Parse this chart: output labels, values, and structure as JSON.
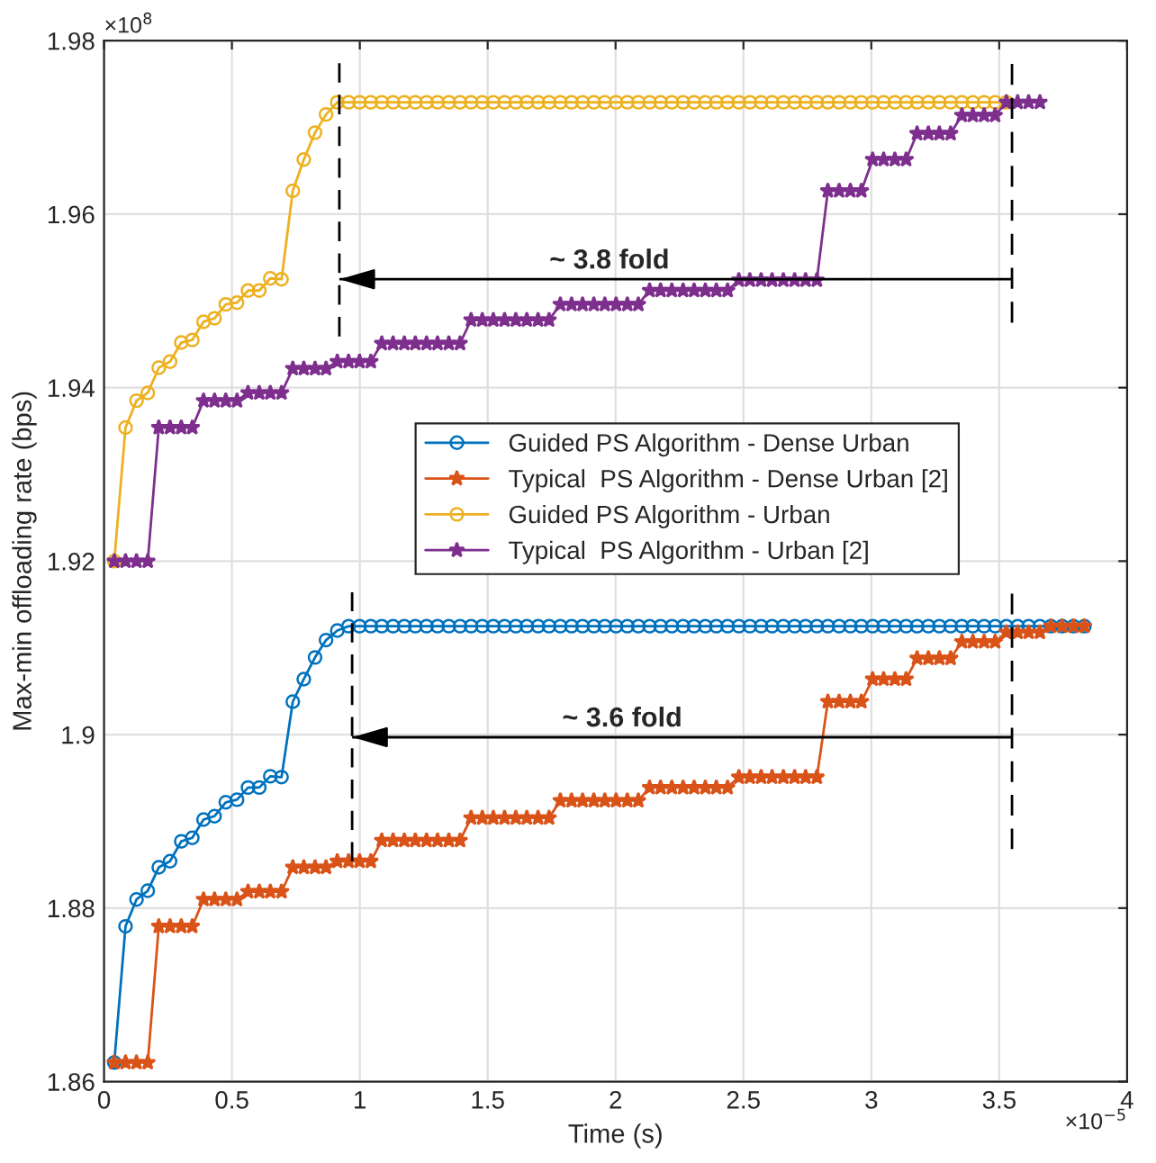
{
  "chart_data": {
    "type": "line",
    "xlabel": "Time (s)",
    "ylabel": "Max-min offloading rate (bps)",
    "x": [
      0.04,
      0.084,
      0.127,
      0.171,
      0.214,
      0.258,
      0.302,
      0.345,
      0.389,
      0.432,
      0.476,
      0.52,
      0.563,
      0.607,
      0.65,
      0.694,
      0.738,
      0.781,
      0.825,
      0.868,
      0.912,
      0.956,
      0.999,
      1.043,
      1.086,
      1.13,
      1.174,
      1.217,
      1.261,
      1.304,
      1.348,
      1.392,
      1.435,
      1.479,
      1.522,
      1.566,
      1.61,
      1.653,
      1.697,
      1.74,
      1.784,
      1.828,
      1.871,
      1.915,
      1.958,
      2.002,
      2.046,
      2.089,
      2.133,
      2.176,
      2.22,
      2.264,
      2.307,
      2.351,
      2.394,
      2.438,
      2.482,
      2.525,
      2.569,
      2.612,
      2.656,
      2.7,
      2.743,
      2.787,
      2.83,
      2.874,
      2.918,
      2.961,
      3.005,
      3.048,
      3.092,
      3.136,
      3.179,
      3.223,
      3.266,
      3.31,
      3.354,
      3.397,
      3.441,
      3.484,
      3.528,
      3.572,
      3.615,
      3.659,
      3.702,
      3.746,
      3.79,
      3.833
    ],
    "series": [
      {
        "name": "Guided PS Algorithm - Dense Urban",
        "color": "#0072bd",
        "marker": "circle",
        "values": [
          1.8622,
          1.8779,
          1.881,
          1.882,
          1.8847,
          1.8854,
          1.8877,
          1.8881,
          1.8902,
          1.8906,
          1.8922,
          1.8925,
          1.8939,
          1.8939,
          1.8952,
          1.8951,
          1.9038,
          1.9064,
          1.9089,
          1.9109,
          1.912,
          1.9125,
          1.9125,
          1.9125,
          1.9125,
          1.9125,
          1.9125,
          1.9125,
          1.9125,
          1.9125,
          1.9125,
          1.9125,
          1.9125,
          1.9125,
          1.9125,
          1.9125,
          1.9125,
          1.9125,
          1.9125,
          1.9125,
          1.9125,
          1.9125,
          1.9125,
          1.9125,
          1.9125,
          1.9125,
          1.9125,
          1.9125,
          1.9125,
          1.9125,
          1.9125,
          1.9125,
          1.9125,
          1.9125,
          1.9125,
          1.9125,
          1.9125,
          1.9125,
          1.9125,
          1.9125,
          1.9125,
          1.9125,
          1.9125,
          1.9125,
          1.9125,
          1.9125,
          1.9125,
          1.9125,
          1.9125,
          1.9125,
          1.9125,
          1.9125,
          1.9125,
          1.9125,
          1.9125,
          1.9125,
          1.9125,
          1.9125,
          1.9125,
          1.9125,
          1.9125,
          1.9125,
          1.9125,
          1.9125,
          1.9125,
          1.9125,
          1.9125,
          1.9125
        ]
      },
      {
        "name": "Typical  PS Algorithm - Dense Urban [2]",
        "color": "#d95319",
        "marker": "star",
        "values": [
          1.8622,
          1.8622,
          1.8622,
          1.8622,
          1.8779,
          1.8779,
          1.8779,
          1.8779,
          1.881,
          1.881,
          1.881,
          1.881,
          1.8819,
          1.8819,
          1.8819,
          1.8819,
          1.8847,
          1.8847,
          1.8847,
          1.8847,
          1.8854,
          1.8854,
          1.8854,
          1.8854,
          1.8878,
          1.8878,
          1.8878,
          1.8878,
          1.8878,
          1.8878,
          1.8878,
          1.8878,
          1.8904,
          1.8904,
          1.8904,
          1.8904,
          1.8904,
          1.8904,
          1.8904,
          1.8904,
          1.8924,
          1.8924,
          1.8924,
          1.8924,
          1.8924,
          1.8924,
          1.8924,
          1.8924,
          1.8939,
          1.8939,
          1.8939,
          1.8939,
          1.8939,
          1.8939,
          1.8939,
          1.8939,
          1.8951,
          1.8951,
          1.8951,
          1.8951,
          1.8951,
          1.8951,
          1.8951,
          1.8951,
          1.9038,
          1.9038,
          1.9038,
          1.9038,
          1.9064,
          1.9064,
          1.9064,
          1.9064,
          1.9088,
          1.9088,
          1.9088,
          1.9088,
          1.9107,
          1.9107,
          1.9107,
          1.9107,
          1.9118,
          1.9118,
          1.9118,
          1.9118,
          1.9125,
          1.9125,
          1.9125,
          1.9125
        ]
      },
      {
        "name": "Guided PS Algorithm - Urban",
        "color": "#edb120",
        "marker": "circle",
        "values": [
          1.92,
          1.9354,
          1.9385,
          1.9394,
          1.9423,
          1.943,
          1.9452,
          1.9455,
          1.9476,
          1.948,
          1.9496,
          1.9498,
          1.9512,
          1.9512,
          1.9526,
          1.9525,
          1.9627,
          1.9663,
          1.9694,
          1.9715,
          1.9729,
          1.9729,
          1.9729,
          1.9729,
          1.9729,
          1.9729,
          1.9729,
          1.9729,
          1.9729,
          1.9729,
          1.9729,
          1.9729,
          1.9729,
          1.9729,
          1.9729,
          1.9729,
          1.9729,
          1.9729,
          1.9729,
          1.9729,
          1.9729,
          1.9729,
          1.9729,
          1.9729,
          1.9729,
          1.9729,
          1.9729,
          1.9729,
          1.9729,
          1.9729,
          1.9729,
          1.9729,
          1.9729,
          1.9729,
          1.9729,
          1.9729,
          1.9729,
          1.9729,
          1.9729,
          1.9729,
          1.9729,
          1.9729,
          1.9729,
          1.9729,
          1.9729,
          1.9729,
          1.9729,
          1.9729,
          1.9729,
          1.9729,
          1.9729,
          1.9729,
          1.9729,
          1.9729,
          1.9729,
          1.9729,
          1.9729,
          1.9729,
          1.9729,
          1.9729,
          1.9729,
          null,
          null,
          null,
          null,
          null,
          null,
          null
        ]
      },
      {
        "name": "Typical  PS Algorithm - Urban [2]",
        "color": "#7e2f8e",
        "marker": "star",
        "values": [
          1.92,
          1.92,
          1.92,
          1.92,
          1.9354,
          1.9354,
          1.9354,
          1.9354,
          1.9385,
          1.9385,
          1.9385,
          1.9385,
          1.9394,
          1.9394,
          1.9394,
          1.9394,
          1.9422,
          1.9422,
          1.9422,
          1.9422,
          1.943,
          1.943,
          1.943,
          1.943,
          1.9451,
          1.9451,
          1.9451,
          1.9451,
          1.9451,
          1.9451,
          1.9451,
          1.9451,
          1.9478,
          1.9478,
          1.9478,
          1.9478,
          1.9478,
          1.9478,
          1.9478,
          1.9478,
          1.9496,
          1.9496,
          1.9496,
          1.9496,
          1.9496,
          1.9496,
          1.9496,
          1.9496,
          1.9512,
          1.9512,
          1.9512,
          1.9512,
          1.9512,
          1.9512,
          1.9512,
          1.9512,
          1.9524,
          1.9524,
          1.9524,
          1.9524,
          1.9524,
          1.9524,
          1.9524,
          1.9524,
          1.9627,
          1.9627,
          1.9627,
          1.9627,
          1.9663,
          1.9663,
          1.9663,
          1.9663,
          1.9693,
          1.9693,
          1.9693,
          1.9693,
          1.9714,
          1.9714,
          1.9714,
          1.9714,
          1.9729,
          1.9729,
          1.9729,
          1.9729,
          null,
          null,
          null,
          null
        ]
      },
      {
        "type": "line",
        "color": "#000000",
        "line_style": "dashed",
        "marker": "none",
        "x": [
          0.92,
          0.92
        ],
        "values": [
          1.9459,
          1.9774
        ]
      },
      {
        "type": "line",
        "color": "#000000",
        "line_style": "dashed",
        "marker": "none",
        "x": [
          3.55,
          3.55
        ],
        "values": [
          1.9475,
          1.9774
        ]
      },
      {
        "type": "line",
        "color": "#000000",
        "line_style": "dashed",
        "marker": "none",
        "x": [
          0.97,
          0.97
        ],
        "values": [
          1.8854,
          1.9164
        ]
      },
      {
        "type": "line",
        "color": "#000000",
        "line_style": "dashed",
        "marker": "none",
        "x": [
          3.55,
          3.55
        ],
        "values": [
          1.8868,
          1.9163
        ]
      },
      {
        "type": "line",
        "color": "#000000",
        "marker": "none",
        "x": [
          3.55,
          0.92
        ],
        "values": [
          1.9525,
          1.9525
        ]
      },
      {
        "type": "line",
        "color": "#000000",
        "marker": "none",
        "x": [
          3.55,
          0.97
        ],
        "values": [
          1.8997,
          1.8997
        ]
      }
    ],
    "annotations": [
      "~ 3.8 fold",
      "~ 3.6 fold",
      "×10$^{8}$",
      "×10$^{−5}$"
    ],
    "xlim": [
      0,
      4
    ],
    "xticks": [
      0,
      0.5,
      1,
      1.5,
      2,
      2.5,
      3,
      3.5,
      4
    ],
    "ylim": [
      1.86,
      1.98
    ],
    "yticks": [
      1.86,
      1.88,
      1.9,
      1.92,
      1.94,
      1.96,
      1.98
    ],
    "grid": true,
    "legend": "center"
  }
}
